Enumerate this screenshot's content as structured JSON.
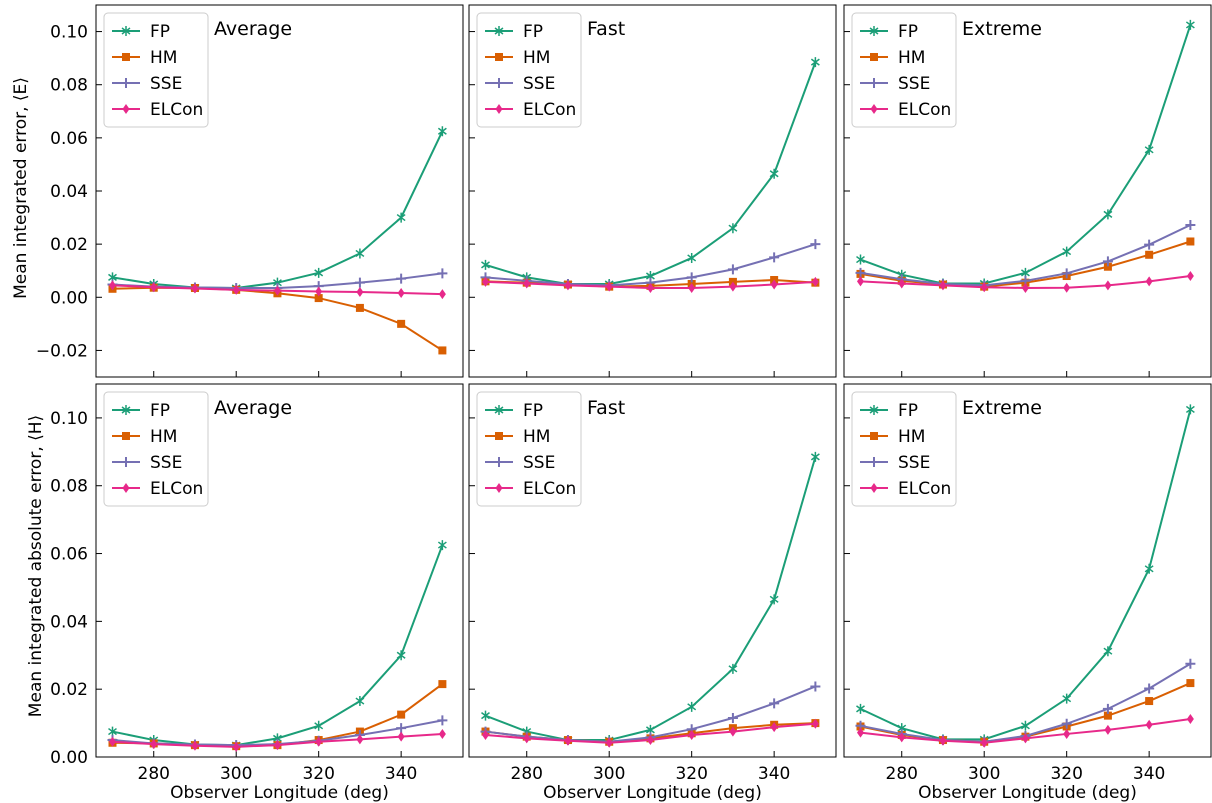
{
  "figure": {
    "xlabel": "Observer Longitude (deg)",
    "ylabel_top": "Mean integrated error, ⟨E⟩",
    "ylabel_bottom": "Mean integrated absolute error, ⟨H⟩"
  },
  "chart_data": [
    {
      "type": "line",
      "title": "Average",
      "xlim": [
        266,
        355
      ],
      "ylim": [
        -0.03,
        0.11
      ],
      "yticks": [
        -0.02,
        0.0,
        0.02,
        0.04,
        0.06,
        0.08,
        0.1
      ],
      "xticks": [
        280,
        300,
        320,
        340
      ],
      "x": [
        270,
        280,
        290,
        300,
        310,
        320,
        330,
        340,
        350
      ],
      "series": [
        {
          "name": "FP",
          "color": "#1b9e77",
          "marker": "star",
          "values": [
            0.0075,
            0.005,
            0.0037,
            0.0035,
            0.0055,
            0.0092,
            0.0165,
            0.03,
            0.0625
          ]
        },
        {
          "name": "HM",
          "color": "#d95f02",
          "marker": "square",
          "values": [
            0.0032,
            0.0036,
            0.0035,
            0.0028,
            0.0015,
            -0.0003,
            -0.004,
            -0.01,
            -0.02
          ]
        },
        {
          "name": "SSE",
          "color": "#7570b3",
          "marker": "plus",
          "values": [
            0.0048,
            0.004,
            0.0037,
            0.0035,
            0.0035,
            0.0042,
            0.0055,
            0.007,
            0.009
          ]
        },
        {
          "name": "ELCon",
          "color": "#e7298a",
          "marker": "diamond",
          "values": [
            0.0045,
            0.0038,
            0.0033,
            0.0028,
            0.0025,
            0.0022,
            0.002,
            0.0016,
            0.0012
          ]
        }
      ]
    },
    {
      "type": "line",
      "title": "Fast",
      "xlim": [
        266,
        355
      ],
      "ylim": [
        -0.03,
        0.11
      ],
      "yticks": [
        -0.02,
        0.0,
        0.02,
        0.04,
        0.06,
        0.08,
        0.1
      ],
      "xticks": [
        280,
        300,
        320,
        340
      ],
      "x": [
        270,
        280,
        290,
        300,
        310,
        320,
        330,
        340,
        350
      ],
      "series": [
        {
          "name": "FP",
          "color": "#1b9e77",
          "marker": "star",
          "values": [
            0.0122,
            0.0075,
            0.005,
            0.005,
            0.008,
            0.0148,
            0.026,
            0.0465,
            0.0885
          ]
        },
        {
          "name": "HM",
          "color": "#d95f02",
          "marker": "square",
          "values": [
            0.006,
            0.0055,
            0.0048,
            0.004,
            0.0043,
            0.005,
            0.0058,
            0.0065,
            0.0055
          ]
        },
        {
          "name": "SSE",
          "color": "#7570b3",
          "marker": "plus",
          "values": [
            0.0075,
            0.0062,
            0.005,
            0.0045,
            0.0055,
            0.0075,
            0.0105,
            0.015,
            0.02
          ]
        },
        {
          "name": "ELCon",
          "color": "#e7298a",
          "marker": "diamond",
          "values": [
            0.0058,
            0.0052,
            0.0045,
            0.004,
            0.0035,
            0.0035,
            0.004,
            0.0048,
            0.0058
          ]
        }
      ]
    },
    {
      "type": "line",
      "title": "Extreme",
      "xlim": [
        266,
        355
      ],
      "ylim": [
        -0.03,
        0.11
      ],
      "yticks": [
        -0.02,
        0.0,
        0.02,
        0.04,
        0.06,
        0.08,
        0.1
      ],
      "xticks": [
        280,
        300,
        320,
        340
      ],
      "x": [
        270,
        280,
        290,
        300,
        310,
        320,
        330,
        340,
        350
      ],
      "series": [
        {
          "name": "FP",
          "color": "#1b9e77",
          "marker": "star",
          "values": [
            0.0142,
            0.0085,
            0.0052,
            0.0052,
            0.0092,
            0.0172,
            0.0312,
            0.0555,
            0.1025
          ]
        },
        {
          "name": "HM",
          "color": "#d95f02",
          "marker": "square",
          "values": [
            0.0088,
            0.0062,
            0.0048,
            0.004,
            0.0055,
            0.008,
            0.0115,
            0.016,
            0.021
          ]
        },
        {
          "name": "SSE",
          "color": "#7570b3",
          "marker": "plus",
          "values": [
            0.0092,
            0.0068,
            0.005,
            0.0045,
            0.0062,
            0.009,
            0.0135,
            0.0198,
            0.0272
          ]
        },
        {
          "name": "ELCon",
          "color": "#e7298a",
          "marker": "diamond",
          "values": [
            0.006,
            0.0052,
            0.0045,
            0.0038,
            0.0035,
            0.0036,
            0.0045,
            0.006,
            0.008
          ]
        }
      ]
    },
    {
      "type": "line",
      "title": "Average",
      "xlim": [
        266,
        355
      ],
      "ylim": [
        0.0,
        0.11
      ],
      "yticks": [
        0.0,
        0.02,
        0.04,
        0.06,
        0.08,
        0.1
      ],
      "xticks": [
        280,
        300,
        320,
        340
      ],
      "x": [
        270,
        280,
        290,
        300,
        310,
        320,
        330,
        340,
        350
      ],
      "series": [
        {
          "name": "FP",
          "color": "#1b9e77",
          "marker": "star",
          "values": [
            0.0075,
            0.005,
            0.0037,
            0.0035,
            0.0055,
            0.0092,
            0.0165,
            0.03,
            0.0625
          ]
        },
        {
          "name": "HM",
          "color": "#d95f02",
          "marker": "square",
          "values": [
            0.0042,
            0.004,
            0.0035,
            0.0032,
            0.0035,
            0.005,
            0.0075,
            0.0125,
            0.0215
          ]
        },
        {
          "name": "SSE",
          "color": "#7570b3",
          "marker": "plus",
          "values": [
            0.005,
            0.004,
            0.0037,
            0.0035,
            0.0038,
            0.0048,
            0.0065,
            0.0085,
            0.0108
          ]
        },
        {
          "name": "ELCon",
          "color": "#e7298a",
          "marker": "diamond",
          "values": [
            0.0045,
            0.0038,
            0.0033,
            0.003,
            0.0035,
            0.0045,
            0.0052,
            0.006,
            0.0068
          ]
        }
      ]
    },
    {
      "type": "line",
      "title": "Fast",
      "xlim": [
        266,
        355
      ],
      "ylim": [
        0.0,
        0.11
      ],
      "yticks": [
        0.0,
        0.02,
        0.04,
        0.06,
        0.08,
        0.1
      ],
      "xticks": [
        280,
        300,
        320,
        340
      ],
      "x": [
        270,
        280,
        290,
        300,
        310,
        320,
        330,
        340,
        350
      ],
      "series": [
        {
          "name": "FP",
          "color": "#1b9e77",
          "marker": "star",
          "values": [
            0.0122,
            0.0075,
            0.005,
            0.005,
            0.008,
            0.0148,
            0.026,
            0.0465,
            0.0885
          ]
        },
        {
          "name": "HM",
          "color": "#d95f02",
          "marker": "square",
          "values": [
            0.0075,
            0.006,
            0.005,
            0.0045,
            0.0055,
            0.007,
            0.0085,
            0.0095,
            0.01
          ]
        },
        {
          "name": "SSE",
          "color": "#7570b3",
          "marker": "plus",
          "values": [
            0.0075,
            0.006,
            0.005,
            0.0045,
            0.0058,
            0.0082,
            0.0115,
            0.0158,
            0.0208
          ]
        },
        {
          "name": "ELCon",
          "color": "#e7298a",
          "marker": "diamond",
          "values": [
            0.0065,
            0.0055,
            0.0048,
            0.0042,
            0.005,
            0.0065,
            0.0075,
            0.0088,
            0.0098
          ]
        }
      ]
    },
    {
      "type": "line",
      "title": "Extreme",
      "xlim": [
        266,
        355
      ],
      "ylim": [
        0.0,
        0.11
      ],
      "yticks": [
        0.0,
        0.02,
        0.04,
        0.06,
        0.08,
        0.1
      ],
      "xticks": [
        280,
        300,
        320,
        340
      ],
      "x": [
        270,
        280,
        290,
        300,
        310,
        320,
        330,
        340,
        350
      ],
      "series": [
        {
          "name": "FP",
          "color": "#1b9e77",
          "marker": "star",
          "values": [
            0.0142,
            0.0085,
            0.0052,
            0.0052,
            0.0092,
            0.0172,
            0.0312,
            0.0555,
            0.1025
          ]
        },
        {
          "name": "HM",
          "color": "#d95f02",
          "marker": "square",
          "values": [
            0.009,
            0.0065,
            0.005,
            0.0045,
            0.006,
            0.009,
            0.0122,
            0.0165,
            0.0218
          ]
        },
        {
          "name": "SSE",
          "color": "#7570b3",
          "marker": "plus",
          "values": [
            0.0092,
            0.0068,
            0.005,
            0.0045,
            0.0062,
            0.0098,
            0.0142,
            0.0202,
            0.0275
          ]
        },
        {
          "name": "ELCon",
          "color": "#e7298a",
          "marker": "diamond",
          "values": [
            0.0072,
            0.0058,
            0.0048,
            0.0042,
            0.0055,
            0.0068,
            0.008,
            0.0095,
            0.0112
          ]
        }
      ]
    }
  ]
}
